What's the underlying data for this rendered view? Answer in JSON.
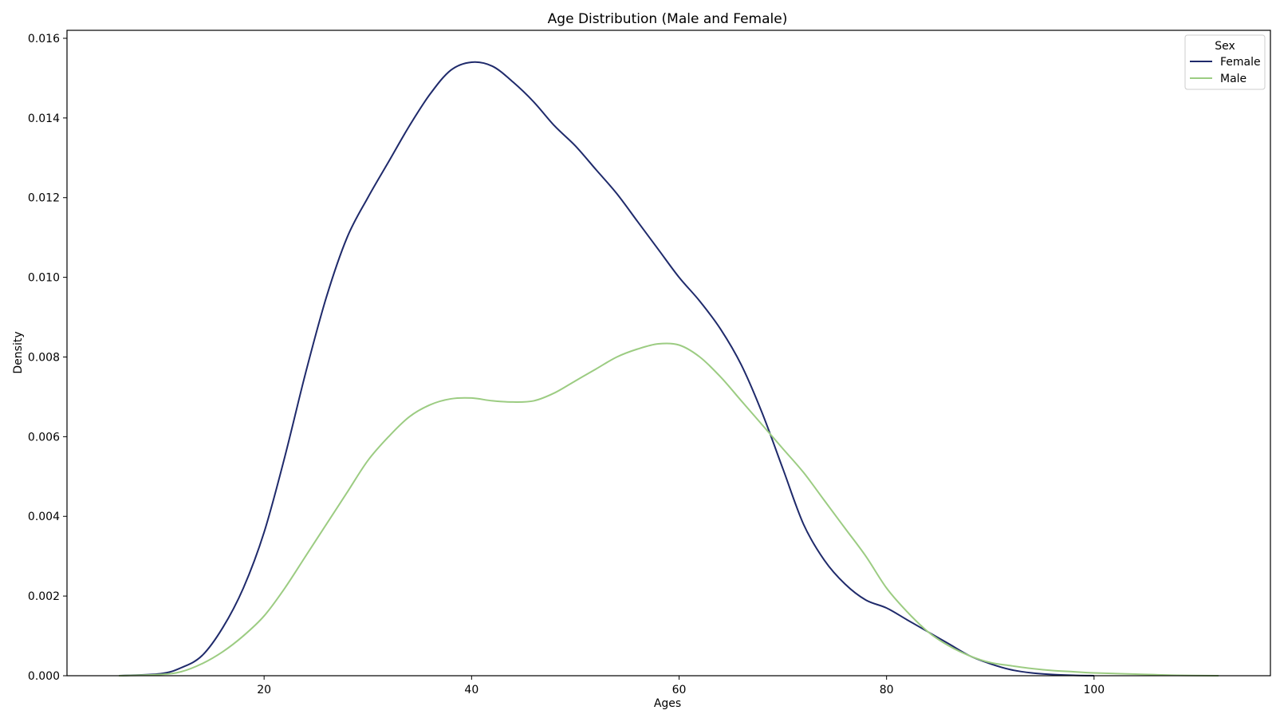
{
  "chart_data": {
    "type": "line",
    "title": "Age Distribution (Male and Female)",
    "xlabel": "Ages",
    "ylabel": "Density",
    "xlim": [
      1,
      117
    ],
    "ylim": [
      0,
      0.0162
    ],
    "xticks": [
      20,
      40,
      60,
      80,
      100
    ],
    "yticks": [
      0.0,
      0.002,
      0.004,
      0.006,
      0.008,
      0.01,
      0.012,
      0.014,
      0.016
    ],
    "ytick_labels": [
      "0.000",
      "0.002",
      "0.004",
      "0.006",
      "0.008",
      "0.010",
      "0.012",
      "0.014",
      "0.016"
    ],
    "grid": false,
    "legend": {
      "title": "Sex",
      "placement": "top-right"
    },
    "series": [
      {
        "name": "Female",
        "color": "#1f2a6b",
        "x": [
          6,
          10,
          12,
          14,
          16,
          18,
          20,
          22,
          24,
          26,
          28,
          30,
          32,
          34,
          36,
          38,
          40,
          42,
          44,
          46,
          48,
          50,
          52,
          54,
          56,
          58,
          60,
          62,
          64,
          66,
          68,
          70,
          72,
          74,
          76,
          78,
          80,
          82,
          84,
          86,
          88,
          90,
          92,
          94,
          96,
          98,
          100
        ],
        "y": [
          0.0,
          5e-05,
          0.0002,
          0.0005,
          0.0012,
          0.0022,
          0.0036,
          0.0055,
          0.0076,
          0.0095,
          0.011,
          0.012,
          0.0129,
          0.0138,
          0.0146,
          0.0152,
          0.0154,
          0.0153,
          0.0149,
          0.0144,
          0.0138,
          0.0133,
          0.0127,
          0.0121,
          0.0114,
          0.0107,
          0.01,
          0.0094,
          0.0087,
          0.0078,
          0.0066,
          0.0052,
          0.0038,
          0.0029,
          0.0023,
          0.0019,
          0.0017,
          0.0014,
          0.0011,
          0.0008,
          0.0005,
          0.0003,
          0.00015,
          7e-05,
          3e-05,
          1e-05,
          0.0
        ]
      },
      {
        "name": "Male",
        "color": "#9ccc82",
        "x": [
          6,
          10,
          12,
          14,
          16,
          18,
          20,
          22,
          24,
          26,
          28,
          30,
          32,
          34,
          36,
          38,
          40,
          42,
          44,
          46,
          48,
          50,
          52,
          54,
          56,
          58,
          60,
          62,
          64,
          66,
          68,
          70,
          72,
          74,
          76,
          78,
          80,
          82,
          84,
          86,
          88,
          90,
          92,
          94,
          96,
          98,
          100,
          104,
          108,
          112
        ],
        "y": [
          0.0,
          3e-05,
          0.0001,
          0.0003,
          0.0006,
          0.001,
          0.0015,
          0.0022,
          0.003,
          0.0038,
          0.0046,
          0.0054,
          0.006,
          0.0065,
          0.0068,
          0.00695,
          0.00697,
          0.0069,
          0.00687,
          0.0069,
          0.0071,
          0.0074,
          0.0077,
          0.008,
          0.0082,
          0.00833,
          0.0083,
          0.008,
          0.0075,
          0.0069,
          0.0063,
          0.0057,
          0.0051,
          0.0044,
          0.0037,
          0.003,
          0.0022,
          0.0016,
          0.0011,
          0.00075,
          0.0005,
          0.00033,
          0.00025,
          0.00018,
          0.00013,
          0.0001,
          7e-05,
          4e-05,
          1e-05,
          0.0
        ]
      }
    ]
  }
}
